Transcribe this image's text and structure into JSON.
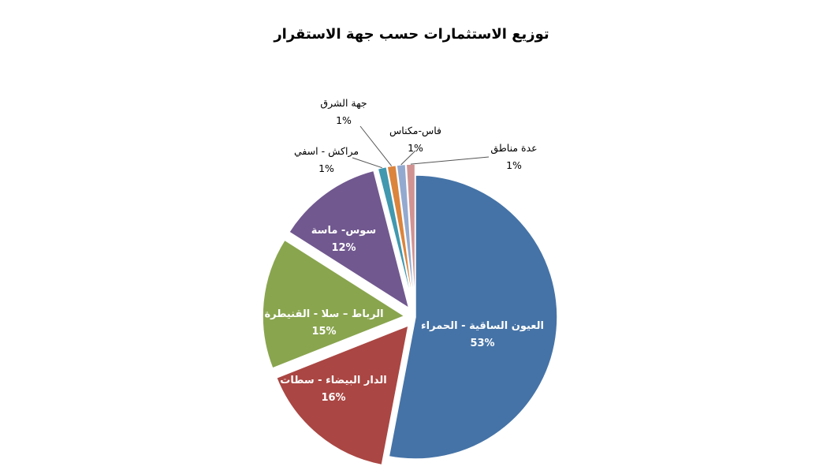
{
  "chart_data": {
    "type": "pie",
    "title": "توزيع الاستثمارات حسب جهة الاستقرار",
    "slices": [
      {
        "label": "العيون الساقية - الحمراء",
        "value": 53,
        "value_label": "53%",
        "color": "#4573A7",
        "exploded": false,
        "label_position": "inside"
      },
      {
        "label": "الدار البيضاء - سطات",
        "value": 16,
        "value_label": "16%",
        "color": "#AA4643",
        "exploded": true,
        "label_position": "inside"
      },
      {
        "label": "الرباط – سلا - القنيطرة",
        "value": 15,
        "value_label": "15%",
        "color": "#89A54E",
        "exploded": true,
        "label_position": "inside"
      },
      {
        "label": "سوس- ماسة",
        "value": 12,
        "value_label": "12%",
        "color": "#71588F",
        "exploded": true,
        "label_position": "inside"
      },
      {
        "label": "مراكش - اسفي",
        "value": 1,
        "value_label": "1%",
        "color": "#4198AF",
        "exploded": true,
        "label_position": "outside"
      },
      {
        "label": "جهة الشرق",
        "value": 1,
        "value_label": "1%",
        "color": "#DB843D",
        "exploded": true,
        "label_position": "outside"
      },
      {
        "label": "فاس-مكناس",
        "value": 1,
        "value_label": "1%",
        "color": "#93A9CF",
        "exploded": true,
        "label_position": "outside"
      },
      {
        "label": "عدة مناطق",
        "value": 1,
        "value_label": "1%",
        "color": "#D19392",
        "exploded": true,
        "label_position": "outside"
      }
    ],
    "legend": "none",
    "start": "top",
    "direction": "clockwise"
  }
}
